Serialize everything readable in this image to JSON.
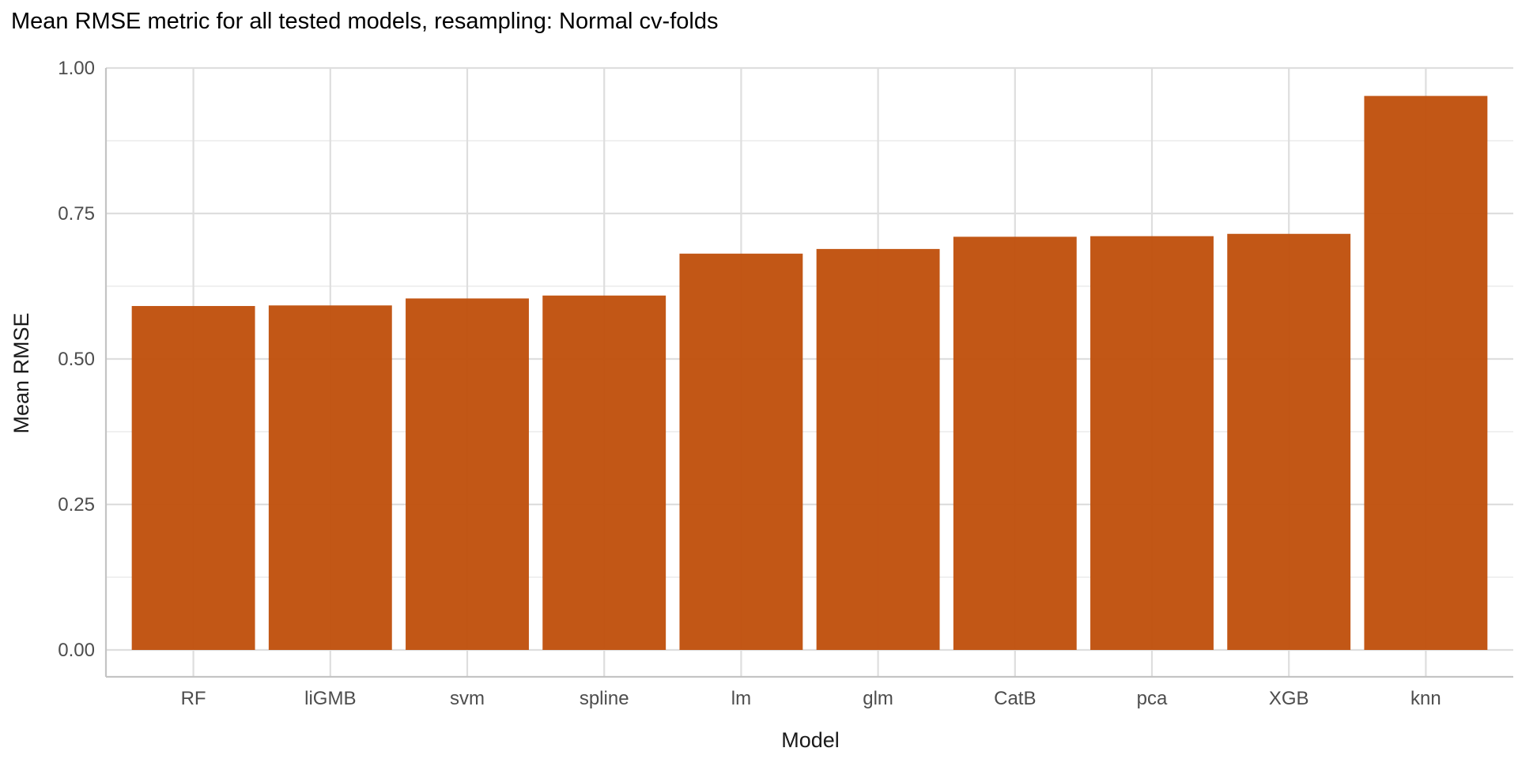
{
  "chart_data": {
    "type": "bar",
    "title": "Mean RMSE metric for all tested models, resampling: Normal cv-folds",
    "xlabel": "Model",
    "ylabel": "Mean RMSE",
    "categories": [
      "RF",
      "liGMB",
      "svm",
      "spline",
      "lm",
      "glm",
      "CatB",
      "pca",
      "XGB",
      "knn"
    ],
    "values": [
      0.591,
      0.592,
      0.604,
      0.609,
      0.681,
      0.689,
      0.71,
      0.711,
      0.715,
      0.952
    ],
    "ylim": [
      0,
      1.0
    ],
    "yticks": [
      0,
      0.25,
      0.5,
      0.75,
      1.0
    ],
    "ytick_labels": [
      "0.00",
      "0.25",
      "0.50",
      "0.75",
      "1.00"
    ],
    "bar_color": "#c0520e",
    "grid": true,
    "legend": "none"
  }
}
